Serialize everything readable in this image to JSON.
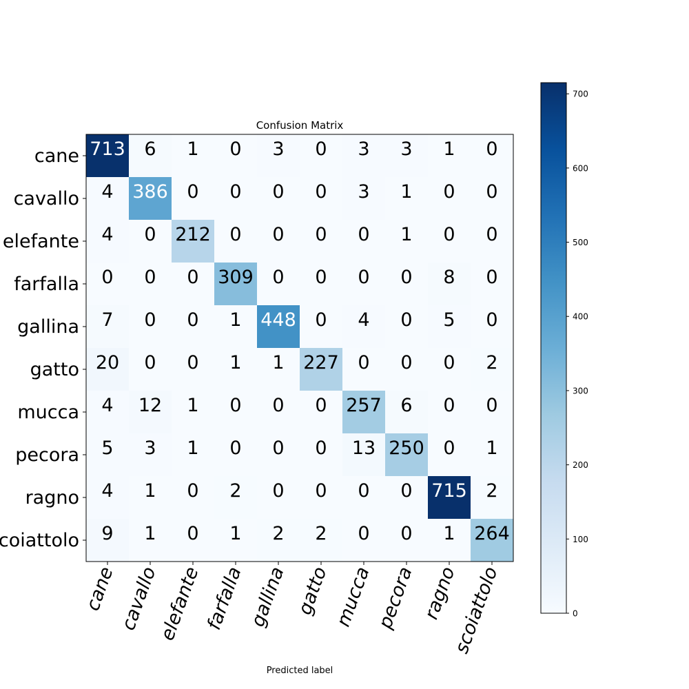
{
  "chart_data": {
    "type": "heatmap",
    "title": "Confusion Matrix",
    "xlabel": "Predicted label",
    "ylabel": "",
    "categories_x": [
      "cane",
      "cavallo",
      "elefante",
      "farfalla",
      "gallina",
      "gatto",
      "mucca",
      "pecora",
      "ragno",
      "scoiattolo"
    ],
    "categories_y": [
      "cane",
      "cavallo",
      "elefante",
      "farfalla",
      "gallina",
      "gatto",
      "mucca",
      "pecora",
      "ragno",
      "scoiattolo"
    ],
    "matrix": [
      [
        713,
        6,
        1,
        0,
        3,
        0,
        3,
        3,
        1,
        0
      ],
      [
        4,
        386,
        0,
        0,
        0,
        0,
        3,
        1,
        0,
        0
      ],
      [
        4,
        0,
        212,
        0,
        0,
        0,
        0,
        1,
        0,
        0
      ],
      [
        0,
        0,
        0,
        309,
        0,
        0,
        0,
        0,
        8,
        0
      ],
      [
        7,
        0,
        0,
        1,
        448,
        0,
        4,
        0,
        5,
        0
      ],
      [
        20,
        0,
        0,
        1,
        1,
        227,
        0,
        0,
        0,
        2
      ],
      [
        4,
        12,
        1,
        0,
        0,
        0,
        257,
        6,
        0,
        0
      ],
      [
        5,
        3,
        1,
        0,
        0,
        0,
        13,
        250,
        0,
        1
      ],
      [
        4,
        1,
        0,
        2,
        0,
        0,
        0,
        0,
        715,
        2
      ],
      [
        9,
        1,
        0,
        1,
        2,
        2,
        0,
        0,
        1,
        264
      ]
    ],
    "colormap": "Blues",
    "colorbar": {
      "range": [
        0,
        715
      ],
      "ticks": [
        0,
        100,
        200,
        300,
        400,
        500,
        600,
        700
      ]
    },
    "x_tick_rotation_deg": 70
  }
}
